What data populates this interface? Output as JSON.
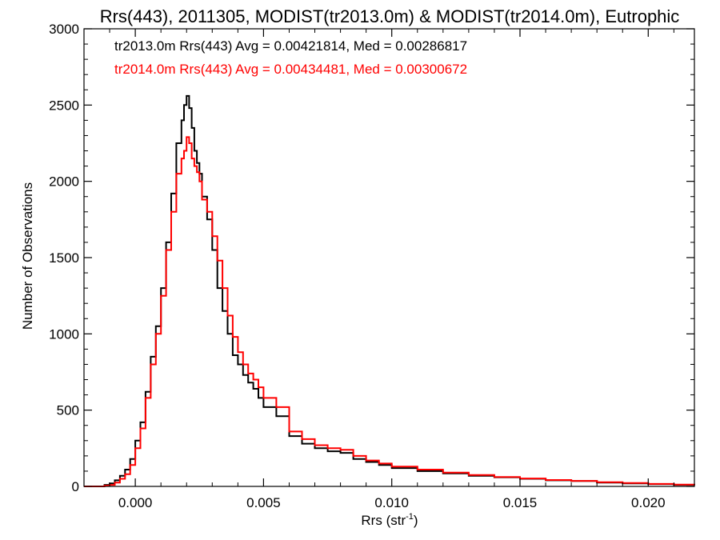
{
  "chart_data": {
    "type": "line",
    "title": "Rrs(443), 2011305, MODIST(tr2013.0m) & MODIST(tr2014.0m), Eutrophic",
    "xlabel_base": "Rrs (str",
    "xlabel_sup": "-1",
    "xlabel_close": ")",
    "ylabel": "Number of Observations",
    "xlim": [
      -0.002,
      0.0218
    ],
    "ylim": [
      0,
      3000
    ],
    "xticks": [
      0.0,
      0.005,
      0.01,
      0.015,
      0.02
    ],
    "xtick_labels": [
      "0.000",
      "0.005",
      "0.010",
      "0.015",
      "0.020"
    ],
    "yticks": [
      0,
      500,
      1000,
      1500,
      2000,
      2500,
      3000
    ],
    "ytick_labels": [
      "0",
      "500",
      "1000",
      "1500",
      "2000",
      "2500",
      "3000"
    ],
    "grid": false,
    "annotations": [
      {
        "text": "tr2013.0m Rrs(443) Avg = 0.00421814, Med = 0.00286817",
        "color": "#000000"
      },
      {
        "text": "tr2014.0m Rrs(443) Avg = 0.00434481, Med = 0.00300672",
        "color": "#ff0000"
      }
    ],
    "series": [
      {
        "color": "#000000",
        "x": [
          -0.002,
          -0.0015,
          -0.0012,
          -0.001,
          -0.0008,
          -0.0006,
          -0.0004,
          -0.0002,
          0.0,
          0.0002,
          0.0004,
          0.0006,
          0.0008,
          0.001,
          0.0012,
          0.0014,
          0.0016,
          0.0018,
          0.0019,
          0.002,
          0.0021,
          0.0022,
          0.0023,
          0.0024,
          0.0025,
          0.0026,
          0.0028,
          0.003,
          0.0032,
          0.0034,
          0.0036,
          0.0038,
          0.004,
          0.0042,
          0.0044,
          0.0046,
          0.0048,
          0.005,
          0.0055,
          0.006,
          0.0065,
          0.007,
          0.0075,
          0.008,
          0.0085,
          0.009,
          0.0095,
          0.01,
          0.011,
          0.012,
          0.013,
          0.014,
          0.015,
          0.016,
          0.017,
          0.018,
          0.019,
          0.02,
          0.021,
          0.0218
        ],
        "values": [
          0,
          0,
          10,
          20,
          40,
          70,
          110,
          180,
          300,
          420,
          620,
          850,
          1050,
          1300,
          1600,
          1920,
          2250,
          2400,
          2500,
          2560,
          2480,
          2350,
          2200,
          2120,
          2050,
          1900,
          1750,
          1550,
          1300,
          1150,
          1000,
          860,
          800,
          730,
          680,
          640,
          580,
          520,
          460,
          330,
          280,
          250,
          230,
          220,
          180,
          160,
          140,
          120,
          100,
          85,
          70,
          60,
          50,
          40,
          35,
          25,
          20,
          15,
          10,
          8
        ]
      },
      {
        "color": "#ff0000",
        "x": [
          -0.002,
          -0.0015,
          -0.0012,
          -0.001,
          -0.0008,
          -0.0006,
          -0.0004,
          -0.0002,
          0.0,
          0.0002,
          0.0004,
          0.0006,
          0.0008,
          0.001,
          0.0012,
          0.0014,
          0.0016,
          0.0018,
          0.0019,
          0.002,
          0.0021,
          0.0022,
          0.0023,
          0.0024,
          0.0025,
          0.0026,
          0.0028,
          0.003,
          0.0032,
          0.0034,
          0.0036,
          0.0038,
          0.004,
          0.0042,
          0.0044,
          0.0046,
          0.0048,
          0.005,
          0.0055,
          0.006,
          0.0065,
          0.007,
          0.0075,
          0.008,
          0.0085,
          0.009,
          0.0095,
          0.01,
          0.011,
          0.012,
          0.013,
          0.014,
          0.015,
          0.016,
          0.017,
          0.018,
          0.019,
          0.02,
          0.021,
          0.0218
        ],
        "values": [
          0,
          0,
          5,
          10,
          25,
          50,
          80,
          140,
          250,
          380,
          580,
          800,
          1000,
          1250,
          1550,
          1800,
          2050,
          2150,
          2200,
          2290,
          2250,
          2150,
          2100,
          2060,
          2000,
          1880,
          1800,
          1640,
          1480,
          1300,
          1120,
          980,
          880,
          800,
          740,
          700,
          650,
          580,
          520,
          360,
          310,
          270,
          250,
          240,
          200,
          170,
          150,
          130,
          110,
          90,
          75,
          62,
          52,
          42,
          36,
          28,
          22,
          16,
          12,
          9
        ]
      }
    ]
  }
}
